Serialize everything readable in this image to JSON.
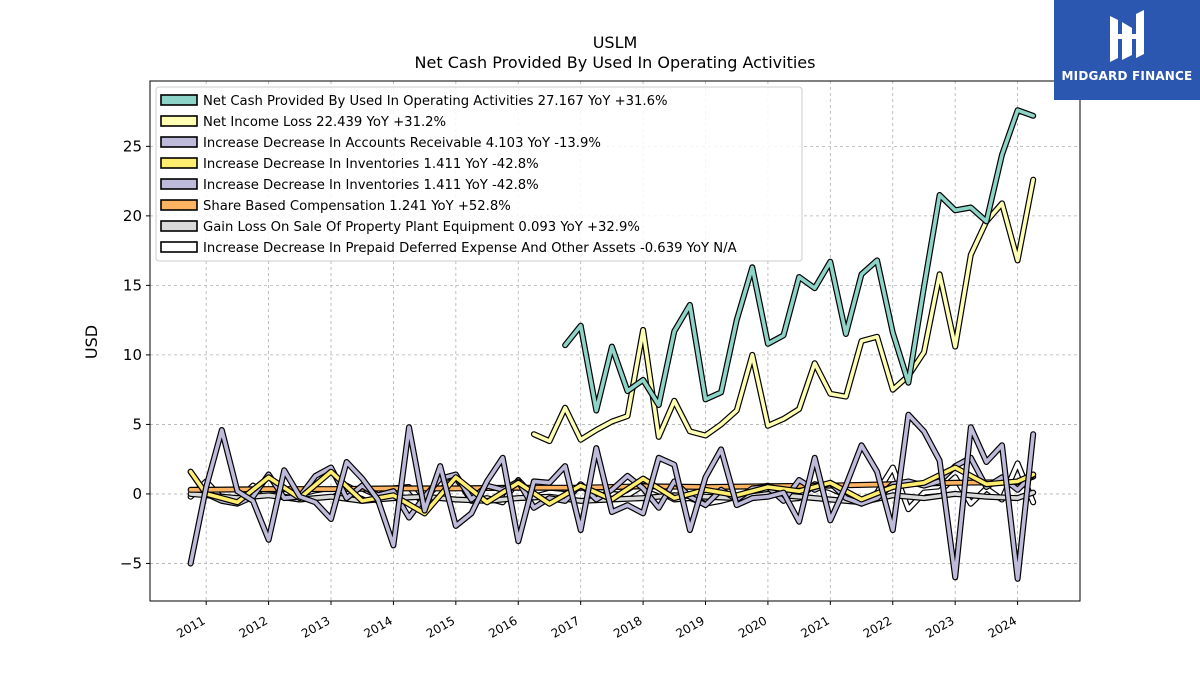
{
  "chart_data": {
    "type": "line",
    "title": "USLM",
    "subtitle": "Net Cash Provided By Used In Operating Activities",
    "xlabel": "",
    "ylabel": "USD",
    "xlim": [
      2010.1,
      2025.0
    ],
    "ylim": [
      -7.7,
      29.7
    ],
    "x_ticks": [
      2011,
      2012,
      2013,
      2014,
      2015,
      2016,
      2017,
      2018,
      2019,
      2020,
      2021,
      2022,
      2023,
      2024
    ],
    "x_tick_labels": [
      "2011",
      "2012",
      "2013",
      "2014",
      "2015",
      "2016",
      "2017",
      "2018",
      "2019",
      "2020",
      "2021",
      "2022",
      "2023",
      "2024"
    ],
    "y_ticks": [
      -5,
      0,
      5,
      10,
      15,
      20,
      25
    ],
    "y_tick_labels": [
      "−5",
      "0",
      "5",
      "10",
      "15",
      "20",
      "25"
    ],
    "grid": true,
    "legend_position": "top-left",
    "series": [
      {
        "name": "Net Cash Provided By Used In Operating Activities",
        "label": "Net Cash Provided By Used In Operating Activities  27.167 YoY +31.6%",
        "color": "#8dd3c7",
        "x": [
          2016.75,
          2017.0,
          2017.25,
          2017.5,
          2017.75,
          2018.0,
          2018.25,
          2018.5,
          2018.75,
          2019.0,
          2019.25,
          2019.5,
          2019.75,
          2020.0,
          2020.25,
          2020.5,
          2020.75,
          2021.0,
          2021.25,
          2021.5,
          2021.75,
          2022.0,
          2022.25,
          2022.5,
          2022.75,
          2023.0,
          2023.25,
          2023.5,
          2023.75,
          2024.0,
          2024.25
        ],
        "values": [
          10.7,
          12.1,
          6.0,
          10.6,
          7.4,
          8.2,
          6.4,
          11.7,
          13.6,
          6.8,
          7.3,
          12.5,
          16.3,
          10.8,
          11.4,
          15.6,
          14.8,
          16.7,
          11.5,
          15.8,
          16.8,
          11.6,
          8.0,
          14.9,
          21.5,
          20.4,
          20.6,
          19.6,
          24.4,
          27.6,
          27.2
        ]
      },
      {
        "name": "Net Income Loss",
        "label": "Net Income Loss  22.439 YoY +31.2%",
        "color": "#ffffb3",
        "x": [
          2016.25,
          2016.5,
          2016.75,
          2017.0,
          2017.25,
          2017.5,
          2017.75,
          2018.0,
          2018.25,
          2018.5,
          2018.75,
          2019.0,
          2019.25,
          2019.5,
          2019.75,
          2020.0,
          2020.25,
          2020.5,
          2020.75,
          2021.0,
          2021.25,
          2021.5,
          2021.75,
          2022.0,
          2022.25,
          2022.5,
          2022.75,
          2023.0,
          2023.25,
          2023.5,
          2023.75,
          2024.0,
          2024.25
        ],
        "values": [
          4.3,
          3.8,
          6.2,
          3.9,
          4.6,
          5.2,
          5.6,
          11.8,
          4.1,
          6.7,
          4.5,
          4.2,
          5.0,
          6.0,
          10.0,
          4.9,
          5.4,
          6.1,
          9.4,
          7.2,
          7.0,
          11.0,
          11.3,
          7.5,
          8.5,
          10.2,
          15.8,
          10.6,
          17.2,
          19.6,
          20.9,
          16.8,
          22.6
        ]
      },
      {
        "name": "Increase Decrease In Accounts Receivable",
        "label": "Increase Decrease In Accounts Receivable  4.103 YoY -13.9%",
        "color": "#bebada",
        "x": [
          2010.75,
          2011.0,
          2011.25,
          2011.5,
          2011.75,
          2012.0,
          2012.25,
          2012.5,
          2012.75,
          2013.0,
          2013.25,
          2013.5,
          2013.75,
          2014.0,
          2014.25,
          2014.5,
          2014.75,
          2015.0,
          2015.25,
          2015.5,
          2015.75,
          2016.0,
          2016.25,
          2016.5,
          2016.75,
          2017.0,
          2017.25,
          2017.5,
          2017.75,
          2018.0,
          2018.25,
          2018.5,
          2018.75,
          2019.0,
          2019.25,
          2019.5,
          2019.75,
          2020.0,
          2020.25,
          2020.5,
          2020.75,
          2021.0,
          2021.25,
          2021.5,
          2021.75,
          2022.0,
          2022.25,
          2022.5,
          2022.75,
          2023.0,
          2023.25,
          2023.5,
          2023.75,
          2024.0,
          2024.25
        ],
        "values": [
          -5.0,
          0.5,
          4.6,
          0.2,
          -0.5,
          -3.3,
          1.7,
          -0.2,
          -0.6,
          -1.8,
          2.3,
          1.1,
          -0.4,
          -3.7,
          4.8,
          -1.2,
          2.0,
          -2.3,
          -1.4,
          0.9,
          2.6,
          -3.4,
          0.9,
          0.8,
          2.0,
          -2.6,
          3.3,
          -1.3,
          -0.8,
          -1.4,
          2.6,
          2.1,
          -2.6,
          1.2,
          3.2,
          -0.8,
          -0.3,
          -0.2,
          0.1,
          -2.0,
          2.6,
          -1.9,
          0.6,
          3.5,
          1.6,
          -2.6,
          5.7,
          4.5,
          2.4,
          -6.0,
          4.8,
          2.3,
          3.5,
          -6.1,
          4.3
        ]
      },
      {
        "name": "Increase Decrease In Inventories",
        "label": "Increase Decrease In Inventories  1.411 YoY -42.8%",
        "color": "#ffed6f",
        "x": [
          2010.75,
          2011.0,
          2011.5,
          2012.0,
          2012.5,
          2013.0,
          2013.5,
          2014.0,
          2014.5,
          2015.0,
          2015.5,
          2016.0,
          2016.5,
          2017.0,
          2017.5,
          2018.0,
          2018.5,
          2019.0,
          2019.5,
          2020.0,
          2020.5,
          2021.0,
          2021.5,
          2022.0,
          2022.5,
          2023.0,
          2023.5,
          2024.0,
          2024.25
        ],
        "values": [
          1.6,
          0.0,
          -0.6,
          1.2,
          -0.3,
          1.6,
          -0.5,
          -0.1,
          -1.4,
          1.2,
          -0.6,
          0.8,
          -0.7,
          0.6,
          -0.4,
          1.1,
          -0.3,
          0.3,
          -0.1,
          0.5,
          0.2,
          0.8,
          -0.4,
          0.5,
          0.8,
          1.9,
          0.7,
          0.9,
          1.4
        ]
      },
      {
        "name": "Increase Decrease In Inventories",
        "label": "Increase Decrease In Inventories  1.411 YoY -42.8%",
        "color": "#bebada",
        "x": [
          2010.75,
          2011.0,
          2011.25,
          2011.5,
          2011.75,
          2012.0,
          2012.25,
          2012.5,
          2012.75,
          2013.0,
          2013.25,
          2013.5,
          2013.75,
          2014.0,
          2014.25,
          2014.5,
          2014.75,
          2015.0,
          2015.25,
          2015.5,
          2015.75,
          2016.0,
          2016.25,
          2016.5,
          2016.75,
          2017.0,
          2017.25,
          2017.5,
          2017.75,
          2018.0,
          2018.25,
          2018.5,
          2018.75,
          2019.0,
          2019.25,
          2019.5,
          2019.75,
          2020.0,
          2020.25,
          2020.5,
          2020.75,
          2021.0,
          2021.25,
          2021.5,
          2021.75,
          2022.0,
          2022.25,
          2022.5,
          2022.75,
          2023.0,
          2023.25,
          2023.5,
          2023.75,
          2024.0,
          2024.25
        ],
        "values": [
          1.6,
          0.0,
          -0.5,
          -0.7,
          -0.2,
          1.4,
          -0.3,
          -0.2,
          1.3,
          1.9,
          -0.3,
          0.6,
          -0.1,
          0.2,
          -1.7,
          -0.2,
          1.1,
          1.4,
          -0.4,
          0.6,
          0.3,
          0.9,
          -1.0,
          -0.3,
          -0.5,
          0.7,
          -0.4,
          0.3,
          1.3,
          0.4,
          -1.0,
          0.9,
          -0.2,
          -0.8,
          0.3,
          -0.4,
          0.4,
          0.5,
          -0.5,
          1.0,
          0.3,
          0.8,
          -0.3,
          -0.7,
          -0.3,
          0.7,
          0.9,
          0.6,
          0.9,
          2.0,
          2.6,
          0.5,
          1.2,
          0.3,
          1.4
        ]
      },
      {
        "name": "Share Based Compensation",
        "label": "Share Based Compensation  1.241 YoY +52.8%",
        "color": "#fdb462",
        "x": [
          2010.75,
          2011.0,
          2012.0,
          2013.0,
          2014.0,
          2015.0,
          2016.0,
          2017.0,
          2018.0,
          2019.0,
          2020.0,
          2021.0,
          2022.0,
          2023.0,
          2024.0,
          2024.25
        ],
        "values": [
          0.3,
          0.3,
          0.35,
          0.35,
          0.4,
          0.4,
          0.45,
          0.45,
          0.55,
          0.5,
          0.55,
          0.6,
          0.7,
          0.8,
          0.85,
          1.24
        ]
      },
      {
        "name": "Gain Loss On Sale Of Property Plant Equipment",
        "label": "Gain Loss On Sale Of Property Plant Equipment  0.093 YoY +32.9%",
        "color": "#d9d9d9",
        "x": [
          2010.75,
          2011.0,
          2011.5,
          2012.0,
          2012.5,
          2013.0,
          2013.5,
          2014.0,
          2014.5,
          2015.0,
          2015.5,
          2016.0,
          2016.5,
          2017.0,
          2017.5,
          2018.0,
          2018.5,
          2019.0,
          2019.5,
          2020.0,
          2020.5,
          2021.0,
          2021.5,
          2022.0,
          2022.5,
          2023.0,
          2023.5,
          2024.0,
          2024.25
        ],
        "values": [
          0.0,
          -0.1,
          -0.3,
          -0.1,
          -0.4,
          -0.2,
          -0.5,
          -0.3,
          -0.2,
          -0.4,
          -0.5,
          -0.3,
          -0.2,
          -0.5,
          -0.4,
          -0.3,
          -0.1,
          -0.2,
          -0.3,
          0.0,
          -0.2,
          -0.4,
          -0.6,
          -0.1,
          -0.3,
          0.0,
          -0.2,
          -0.3,
          0.1
        ]
      },
      {
        "name": "Increase Decrease In Prepaid Deferred Expense And Other Assets",
        "label": "Increase Decrease In Prepaid Deferred Expense And Other Assets  -0.639 YoY N/A",
        "color": "#ffffff",
        "x": [
          2010.75,
          2011.0,
          2011.25,
          2011.5,
          2011.75,
          2012.0,
          2012.25,
          2012.5,
          2012.75,
          2013.0,
          2013.25,
          2013.5,
          2013.75,
          2014.0,
          2014.25,
          2014.5,
          2014.75,
          2015.0,
          2015.25,
          2015.5,
          2015.75,
          2016.0,
          2016.25,
          2016.5,
          2016.75,
          2017.0,
          2017.25,
          2017.5,
          2017.75,
          2018.0,
          2018.25,
          2018.5,
          2018.75,
          2019.0,
          2019.25,
          2019.5,
          2019.75,
          2020.0,
          2020.25,
          2020.5,
          2020.75,
          2021.0,
          2021.25,
          2021.5,
          2021.75,
          2022.0,
          2022.25,
          2022.5,
          2022.75,
          2023.0,
          2023.25,
          2023.5,
          2023.75,
          2024.0,
          2024.25
        ],
        "values": [
          -0.2,
          0.9,
          -0.3,
          -0.5,
          0.6,
          0.0,
          -0.2,
          -0.4,
          -0.1,
          0.1,
          0.6,
          0.0,
          -0.5,
          0.4,
          0.5,
          -0.8,
          0.3,
          1.2,
          -0.5,
          -0.3,
          -0.6,
          1.0,
          -0.2,
          0.1,
          0.0,
          0.5,
          0.2,
          0.0,
          -0.1,
          0.6,
          0.2,
          -0.4,
          -0.3,
          -0.7,
          -0.5,
          -0.2,
          0.3,
          0.6,
          -0.4,
          -0.3,
          0.7,
          0.4,
          -0.1,
          -0.7,
          0.1,
          1.9,
          -1.1,
          0.1,
          0.2,
          1.2,
          -0.7,
          0.4,
          -0.4,
          2.2,
          -0.6
        ]
      }
    ]
  },
  "logo": {
    "text": "MIDGARD FINANCE",
    "color": "#2c57b0"
  }
}
